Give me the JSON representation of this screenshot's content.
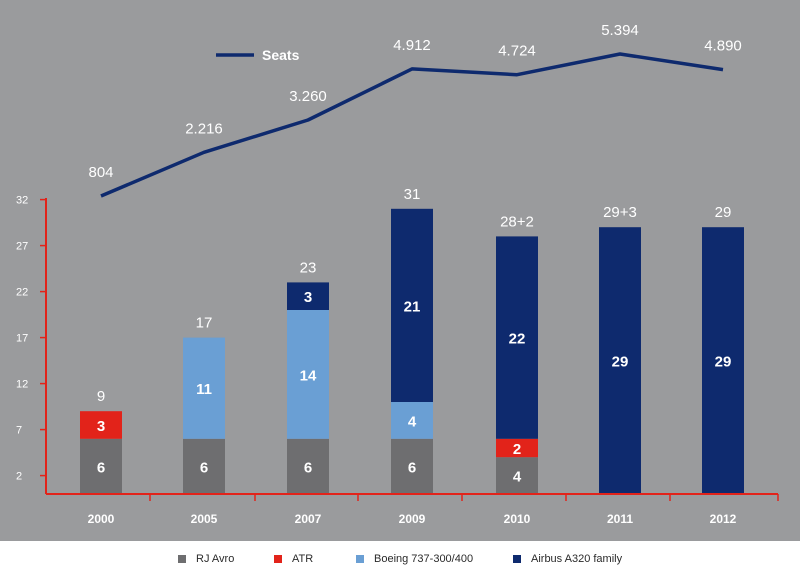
{
  "colors": {
    "background": "#9a9b9d",
    "axis": "#e2231a",
    "text": "#ffffff",
    "seats_line": "#0e2a6e",
    "rj_avro": "#6e6e70",
    "atr": "#e2231a",
    "boeing": "#6a9fd4",
    "airbus": "#0e2a6e"
  },
  "legend": {
    "seats": "Seats",
    "rj_avro": "RJ Avro",
    "atr": "ATR",
    "boeing": "Boeing 737-300/400",
    "airbus": "Airbus A320 family"
  },
  "chart_data": {
    "type": "bar",
    "stacked": true,
    "categories": [
      "2000",
      "2005",
      "2007",
      "2009",
      "2010",
      "2011",
      "2012"
    ],
    "y_ticks": [
      2,
      7,
      12,
      17,
      22,
      27,
      32
    ],
    "ylim": [
      0,
      32
    ],
    "legend_position": "bottom",
    "grid": false,
    "series": [
      {
        "name": "RJ Avro",
        "key": "rj_avro",
        "values": [
          6,
          6,
          6,
          6,
          4,
          0,
          0
        ],
        "labels": [
          "6",
          "6",
          "6",
          "6",
          "4",
          "",
          ""
        ]
      },
      {
        "name": "ATR",
        "key": "atr",
        "values": [
          3,
          0,
          0,
          0,
          2,
          0,
          0
        ],
        "labels": [
          "3",
          "",
          "",
          "",
          "2",
          "",
          ""
        ]
      },
      {
        "name": "Boeing 737-300/400",
        "key": "boeing",
        "values": [
          0,
          11,
          14,
          4,
          0,
          0,
          0
        ],
        "labels": [
          "",
          "11",
          "14",
          "4",
          "",
          "",
          ""
        ]
      },
      {
        "name": "Airbus A320 family",
        "key": "airbus",
        "values": [
          0,
          0,
          3,
          21,
          22,
          29,
          29
        ],
        "labels": [
          "",
          "",
          "3",
          "21",
          "22",
          "29",
          "29"
        ]
      }
    ],
    "totals": [
      "9",
      "17",
      "23",
      "31",
      "28+2",
      "29+3",
      "29"
    ],
    "line": {
      "name": "Seats",
      "values": [
        804,
        2216,
        3260,
        4912,
        4724,
        5394,
        4890
      ],
      "labels": [
        "804",
        "2.216",
        "3.260",
        "4.912",
        "4.724",
        "5.394",
        "4.890"
      ]
    }
  }
}
